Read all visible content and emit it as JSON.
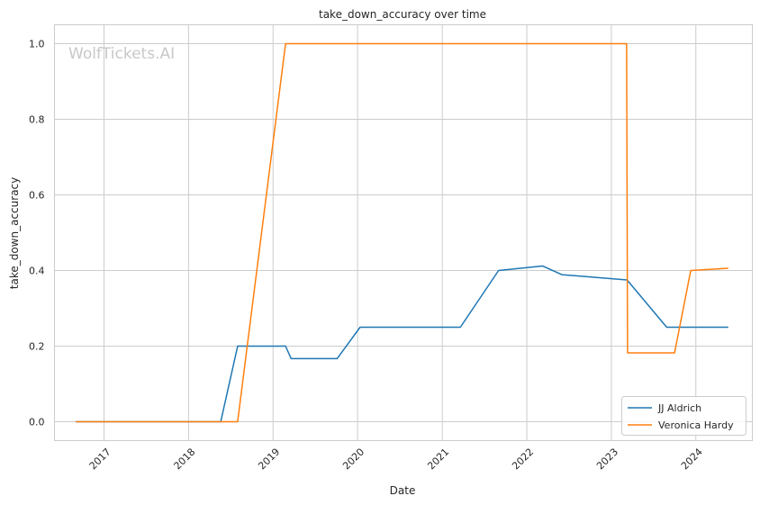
{
  "watermark": "WolfTickets.AI",
  "chart_data": {
    "type": "line",
    "title": "take_down_accuracy over time",
    "xlabel": "Date",
    "ylabel": "take_down_accuracy",
    "x_ticks": [
      "2017",
      "2018",
      "2019",
      "2020",
      "2021",
      "2022",
      "2023",
      "2024"
    ],
    "y_ticks": [
      "0.0",
      "0.2",
      "0.4",
      "0.6",
      "0.8",
      "1.0"
    ],
    "xlim": [
      "2016-06-01",
      "2024-09-01"
    ],
    "ylim": [
      -0.05,
      1.05
    ],
    "grid": true,
    "legend_position": "lower-right",
    "series": [
      {
        "name": "JJ Aldrich",
        "color": "#1f77b4",
        "points": [
          [
            "2016-09-01",
            0.0
          ],
          [
            "2018-05-20",
            0.0
          ],
          [
            "2018-08-01",
            0.2
          ],
          [
            "2019-02-24",
            0.2
          ],
          [
            "2019-03-20",
            0.167
          ],
          [
            "2019-10-05",
            0.167
          ],
          [
            "2020-01-12",
            0.25
          ],
          [
            "2021-03-20",
            0.25
          ],
          [
            "2021-09-01",
            0.4
          ],
          [
            "2022-03-10",
            0.412
          ],
          [
            "2022-06-01",
            0.389
          ],
          [
            "2023-03-10",
            0.375
          ],
          [
            "2023-08-28",
            0.25
          ],
          [
            "2024-05-20",
            0.25
          ]
        ]
      },
      {
        "name": "Veronica Hardy",
        "color": "#ff7f0e",
        "points": [
          [
            "2016-09-01",
            0.0
          ],
          [
            "2018-08-01",
            0.0
          ],
          [
            "2019-02-24",
            1.0
          ],
          [
            "2023-03-08",
            1.0
          ],
          [
            "2023-03-12",
            0.182
          ],
          [
            "2023-10-01",
            0.182
          ],
          [
            "2023-12-10",
            0.4
          ],
          [
            "2024-05-20",
            0.406
          ]
        ]
      }
    ]
  }
}
